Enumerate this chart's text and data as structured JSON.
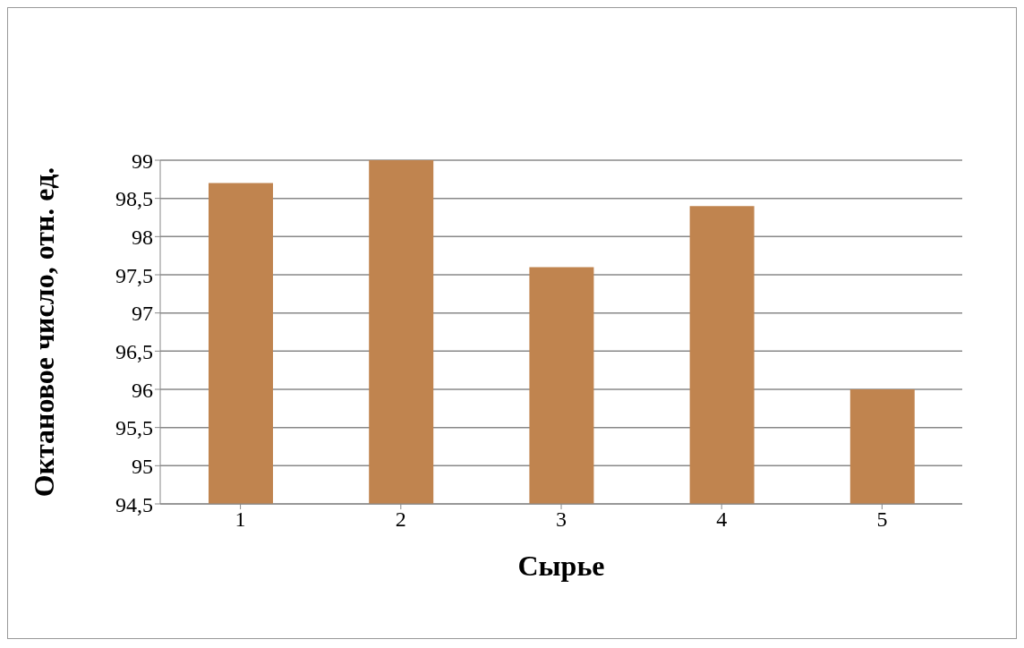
{
  "chart_data": {
    "type": "bar",
    "xlabel": "Сырье",
    "ylabel": "Октановое число, отн. ед.",
    "categories": [
      "1",
      "2",
      "3",
      "4",
      "5"
    ],
    "values": [
      98.7,
      99.0,
      97.6,
      98.4,
      96.0
    ],
    "color": "#c0844f",
    "ylim": [
      94.5,
      99
    ],
    "yticks": [
      {
        "value": 94.5,
        "label": "94,5"
      },
      95,
      {
        "value": 95.5,
        "label": "95,5"
      },
      96,
      {
        "value": 96.5,
        "label": "96,5"
      },
      97,
      {
        "value": 97.5,
        "label": "97,5"
      },
      98,
      {
        "value": 98.5,
        "label": "98,5"
      },
      99
    ],
    "grid": "y"
  }
}
